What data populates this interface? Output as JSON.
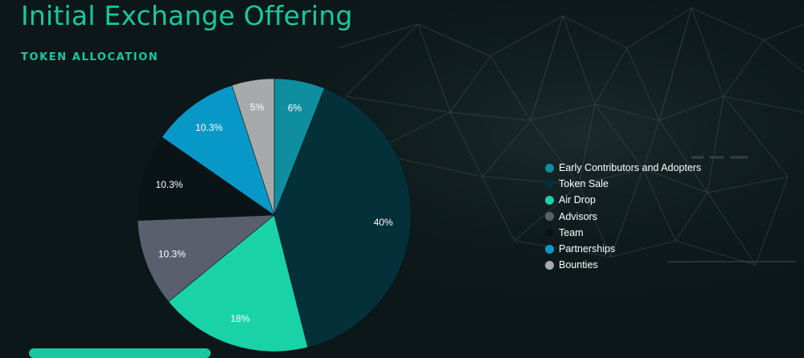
{
  "page": {
    "title": "Initial Exchange Offering"
  },
  "section": {
    "title": "TOKEN ALLOCATION"
  },
  "chart_data": {
    "type": "pie",
    "title": "",
    "slices": [
      {
        "label": "Early Contributors and Adopters",
        "value": 6,
        "display": "6%",
        "color": "#0e8e9e"
      },
      {
        "label": "Token Sale",
        "value": 40,
        "display": "40%",
        "color": "#04303a"
      },
      {
        "label": "Air Drop",
        "value": 18,
        "display": "18%",
        "color": "#19d2a8"
      },
      {
        "label": "Advisors",
        "value": 10.3,
        "display": "10.3%",
        "color": "#595f6d"
      },
      {
        "label": "Team",
        "value": 10.3,
        "display": "10.3%",
        "color": "#0a1416"
      },
      {
        "label": "Partnerships",
        "value": 10.3,
        "display": "10.3%",
        "color": "#0898c8"
      },
      {
        "label": "Bounties",
        "value": 5,
        "display": "5%",
        "color": "#a7a9ab"
      }
    ],
    "legend_position": "right"
  }
}
